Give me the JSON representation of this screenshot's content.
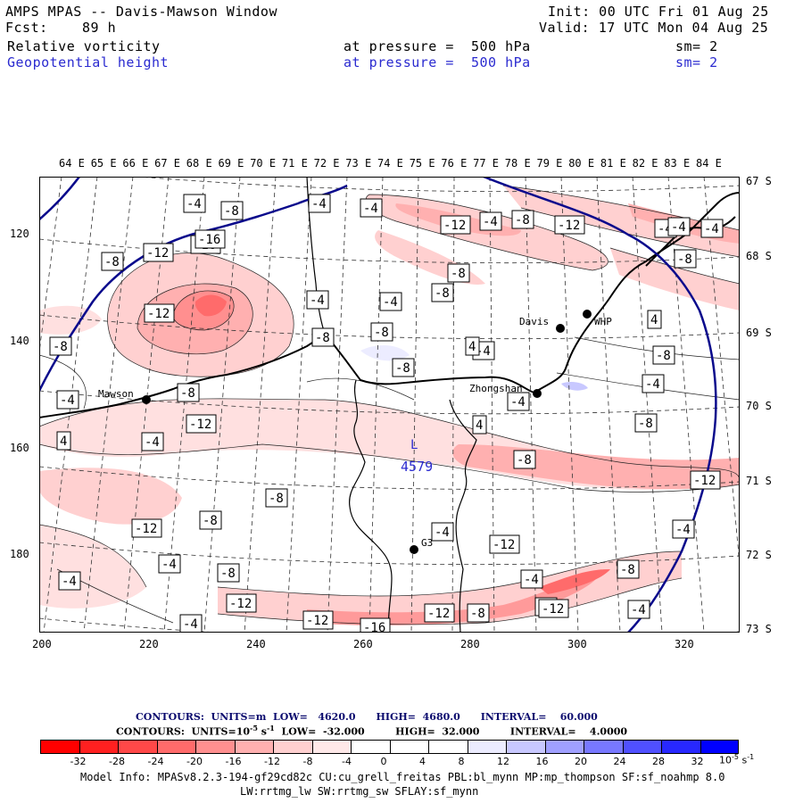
{
  "header": {
    "title": "AMPS MPAS -- Davis-Mawson Window",
    "fcst_label": "Fcst:",
    "fcst_value": "89 h",
    "init": "Init: 00 UTC Fri 01 Aug 25",
    "valid": "Valid: 17 UTC Mon 04 Aug 25",
    "field1_name": "Relative vorticity",
    "field1_level": "at pressure =  500 hPa",
    "field1_sm": "sm= 2",
    "field2_name": "Geopotential height",
    "field2_level": "at pressure =  500 hPa",
    "field2_sm": "sm= 2"
  },
  "axes": {
    "top_lon": [
      "64 E",
      "65 E",
      "66 E",
      "67 E",
      "68 E",
      "69 E",
      "70 E",
      "71 E",
      "72 E",
      "73 E",
      "74 E",
      "75 E",
      "76 E",
      "77 E",
      "78 E",
      "79 E",
      "80 E",
      "81 E",
      "82 E",
      "83 E",
      "84 E"
    ],
    "right_lat": [
      "67 S",
      "68 S",
      "69 S",
      "70 S",
      "71 S",
      "72 S",
      "73 S"
    ],
    "left_y": [
      "120",
      "140",
      "160",
      "180"
    ],
    "bottom_x": [
      "200",
      "220",
      "240",
      "260",
      "280",
      "300",
      "320"
    ]
  },
  "stations": [
    {
      "name": "Mawson"
    },
    {
      "name": "Davis"
    },
    {
      "name": "WHP"
    },
    {
      "name": "Zhongshan"
    },
    {
      "name": "G3"
    }
  ],
  "low_center": {
    "label": "L",
    "value": "4579"
  },
  "vorticity_labels": [
    "-4",
    "-8",
    "-4",
    "-4",
    "-12",
    "-4",
    "-8",
    "-12",
    "-8",
    "-12",
    "-16",
    "-8",
    "-8",
    "-12",
    "-4",
    "-8",
    "-8",
    "-4",
    "-8",
    "-4",
    "-8",
    "-4",
    "4",
    "-8",
    "-4",
    "-8",
    "-4",
    "4",
    "-8",
    "-4",
    "4",
    "-4",
    "-8",
    "-12",
    "-12",
    "-4",
    "-12",
    "-8",
    "-8",
    "-4",
    "-8",
    "-12",
    "-4",
    "-12",
    "-8",
    "-4",
    "-8",
    "-4",
    "-12",
    "-16",
    "-12",
    "-8",
    "-12",
    "-4",
    "-4",
    "-16",
    "-8",
    "-4",
    "4",
    "-4"
  ],
  "footer": {
    "contours1": "CONTOURS:  UNITS=m  LOW=   4620.0      HIGH=  4680.0      INTERVAL=    60.000",
    "contours2": "CONTOURS:  UNITS=10",
    "contours2_exp": "-5",
    "contours2_rest": " s",
    "contours2_exp2": "-1",
    "contours2_tail": "  LOW=  -32.000         HIGH=  32.000         INTERVAL=    4.0000",
    "colorbar_labels": [
      "-32",
      "-28",
      "-24",
      "-20",
      "-16",
      "-12",
      "-8",
      "-4",
      "0",
      "4",
      "8",
      "12",
      "16",
      "20",
      "24",
      "28",
      "32"
    ],
    "colorbar_unit": "10",
    "colorbar_unit_exp": "-5",
    "colorbar_unit_s": " s",
    "colorbar_unit_exp2": "-1",
    "model_info1": "Model Info: MPASv8.2.3-194-gf29cd82c CU:cu_grell_freitas PBL:bl_mynn MP:mp_thompson SF:sf_noahmp 8.0",
    "model_info2": "LW:rrtmg_lw SW:rrtmg_sw SFLAY:sf_mynn"
  },
  "colors": {
    "colorbar": [
      "#ff0000",
      "#ff2020",
      "#ff4848",
      "#ff6b6b",
      "#ff8f8f",
      "#ffb0b0",
      "#ffd0d0",
      "#ffe9e9",
      "#ffffff",
      "#ffffff",
      "#ececff",
      "#c8c8ff",
      "#a0a0ff",
      "#7878ff",
      "#5050ff",
      "#2828ff",
      "#0000ff"
    ],
    "height_contour": "#0a0a8c",
    "label_blue": "#2b2bd0"
  }
}
